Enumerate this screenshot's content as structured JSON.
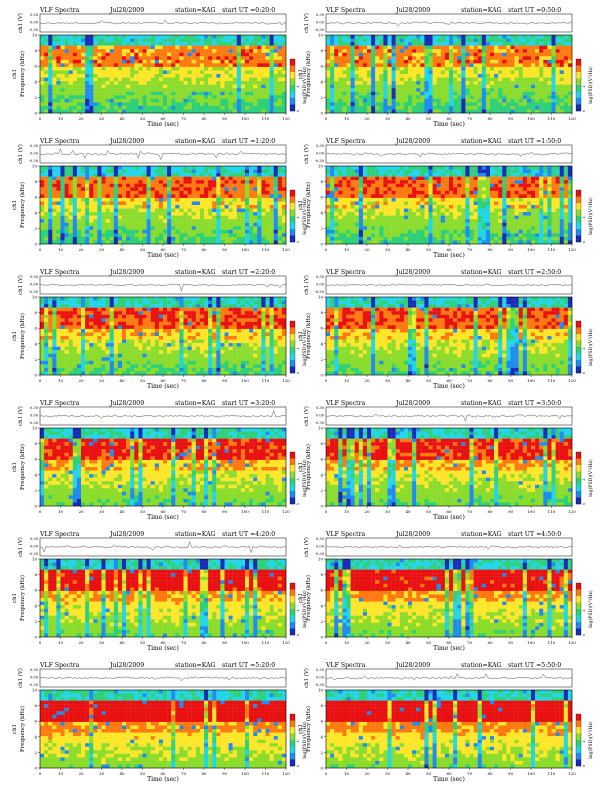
{
  "header_labels": {
    "title": "VLF Spectra",
    "station": "station=KAG",
    "start_prefix": "start UT =",
    "time_label": "Time (sec)",
    "freq_label": "Frequency (kHz)",
    "channel_label": "ch1",
    "waveform_label": "ch1 (V)",
    "colorbar_label": "log(PSD)(V²/Hz)"
  },
  "colors": {
    "spectrogram_scale": [
      "#1b2ab8",
      "#1e8cf0",
      "#22d6e8",
      "#2fd07a",
      "#8bdc2c",
      "#ffe628",
      "#ff7a10",
      "#e81010"
    ],
    "axis": "#000000",
    "trace": "#333333"
  },
  "panels": [
    {
      "date": "Jul28/2009",
      "start_ut": "0:20:0"
    },
    {
      "date": "Jul28/2009",
      "start_ut": "0:50:0"
    },
    {
      "date": "Jul28/2009",
      "start_ut": "1:20:0"
    },
    {
      "date": "Jul28/2009",
      "start_ut": "1:50:0"
    },
    {
      "date": "Jul28/2009",
      "start_ut": "2:20:0"
    },
    {
      "date": "Jul28/2009",
      "start_ut": "2:50:0"
    },
    {
      "date": "Jul28/2009",
      "start_ut": "3:20:0"
    },
    {
      "date": "Jul28/2009",
      "start_ut": "3:50:0"
    },
    {
      "date": "Jul28/2009",
      "start_ut": "4:20:0"
    },
    {
      "date": "Jul28/2009",
      "start_ut": "4:50:0"
    },
    {
      "date": "Jul28/2009",
      "start_ut": "5:20:0"
    },
    {
      "date": "Jul28/2009",
      "start_ut": "5:50:0"
    }
  ],
  "chart_data": {
    "type": "heatmap",
    "description_of_axes": "spectrogram: time vs frequency, colored by log PSD; upper strip: ch1 waveform amplitude",
    "x_ticks": [
      0,
      10,
      20,
      30,
      40,
      50,
      60,
      70,
      80,
      90,
      100,
      110,
      120
    ],
    "xlim": [
      0,
      120
    ],
    "y_ticks": [
      0,
      2,
      4,
      6,
      8,
      10
    ],
    "ylim": [
      0,
      10
    ],
    "waveform_ticks": [
      "0.30",
      "0.00",
      "-0.30"
    ],
    "colorbar_ticks": [
      "-4",
      "-8"
    ],
    "xlabel": "Time (sec)",
    "ylabel": "Frequency (kHz)"
  }
}
